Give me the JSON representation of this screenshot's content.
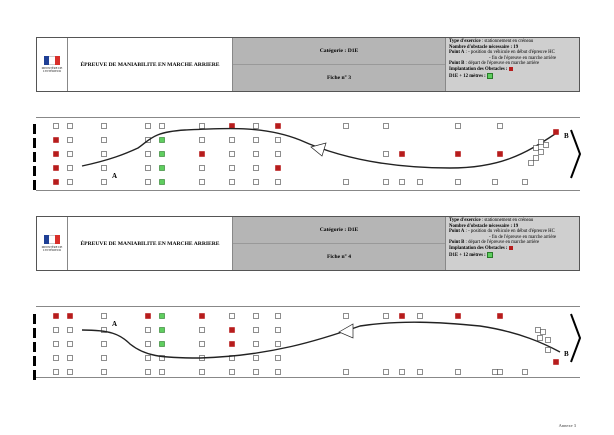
{
  "logo": {
    "text": "MINISTÈRE DE L'INTÉRIEUR",
    "colors": [
      "#1f3f95",
      "#ffffff",
      "#d82f2a"
    ]
  },
  "sheets": [
    {
      "title": "ÉPREUVE DE MANIABILITE EN MARCHE ARRIERE",
      "category": "Catégorie : D1E",
      "sheet": "Fiche n° 3",
      "info": {
        "type_label": "Type d'exercice",
        "type_value": ": stationnement en créneau",
        "count_label": "Nombre d'obstacle nécessaire : 19",
        "pointA_label": "Point A",
        "pointA_value": ": - position du véhicule en début d'épreuve HC",
        "pointA_value2": "- fin de l'épreuve en marche arrière",
        "pointB_label": "Point B",
        "pointB_value": ": départ de l'épreuve en marche arrière",
        "implant_label": "Implantation des Obstacles :",
        "d1e_label": "D1E + 12 mètres :"
      },
      "labelA": "A",
      "labelB": "B"
    },
    {
      "title": "ÉPREUVE DE MANIABILITE EN MARCHE ARRIERE",
      "category": "Catégorie : D1E",
      "sheet": "Fiche n° 4",
      "info": {
        "type_label": "Type d'exercice",
        "type_value": ": stationnement en créneau",
        "count_label": "Nombre d'obstacle nécessaire : 19",
        "pointA_label": "Point A",
        "pointA_value": ": - position du véhicule en début d'épreuve HC",
        "pointA_value2": "- fin de l'épreuve en marche arrière",
        "pointB_label": "Point B",
        "pointB_value": ": départ de l'épreuve en marche arrière",
        "implant_label": "Implantation des Obstacles :",
        "d1e_label": "D1E + 12 mètres :"
      },
      "labelA": "A",
      "labelB": "B"
    }
  ],
  "colors": {
    "obstacle": "#b71c1c",
    "extra": "#5fce5f",
    "cone": "#ffffff"
  },
  "annex": "Annexe 3"
}
